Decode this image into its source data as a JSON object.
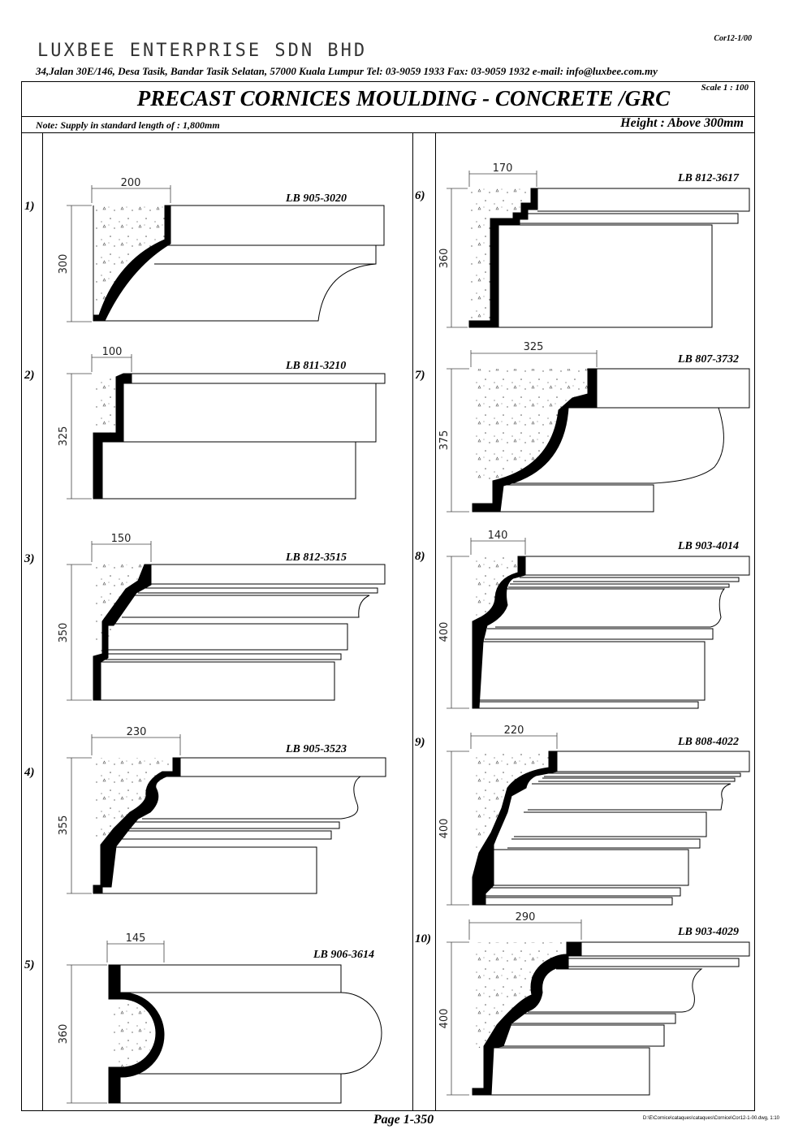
{
  "header": {
    "company": "LUXBEE ENTERPRISE SDN BHD",
    "address": "34,Jalan 30E/146, Desa Tasik, Bandar Tasik Selatan, 57000 Kuala Lumpur   Tel: 03-9059 1933   Fax: 03-9059 1932   e-mail: info@luxbee.com.my",
    "doc_ref": "Cor12-1/00"
  },
  "title": "PRECAST CORNICES MOULDING - CONCRETE /GRC",
  "scale": "Scale 1 : 100",
  "note": "Note: Supply in standard length of : 1,800mm",
  "height_note": "Height : Above 300mm",
  "items": [
    {
      "num": "1)",
      "code": "LB 905-3020",
      "width": "200",
      "height": "300"
    },
    {
      "num": "2)",
      "code": "LB 811-3210",
      "width": "100",
      "height": "325"
    },
    {
      "num": "3)",
      "code": "LB 812-3515",
      "width": "150",
      "height": "350"
    },
    {
      "num": "4)",
      "code": "LB 905-3523",
      "width": "230",
      "height": "355"
    },
    {
      "num": "5)",
      "code": "LB 906-3614",
      "width": "145",
      "height": "360"
    },
    {
      "num": "6)",
      "code": "LB 812-3617",
      "width": "170",
      "height": "360"
    },
    {
      "num": "7)",
      "code": "LB 807-3732",
      "width": "325",
      "height": "375"
    },
    {
      "num": "8)",
      "code": "LB 903-4014",
      "width": "140",
      "height": "400"
    },
    {
      "num": "9)",
      "code": "LB 808-4022",
      "width": "220",
      "height": "400"
    },
    {
      "num": "10)",
      "code": "LB 903-4029",
      "width": "290",
      "height": "400"
    }
  ],
  "footer": {
    "page": "Page 1-350",
    "file_path": "D:\\E\\Cornice\\cataques\\cataques\\Cornice\\Cor12-1-00.dwg, 1:10"
  }
}
